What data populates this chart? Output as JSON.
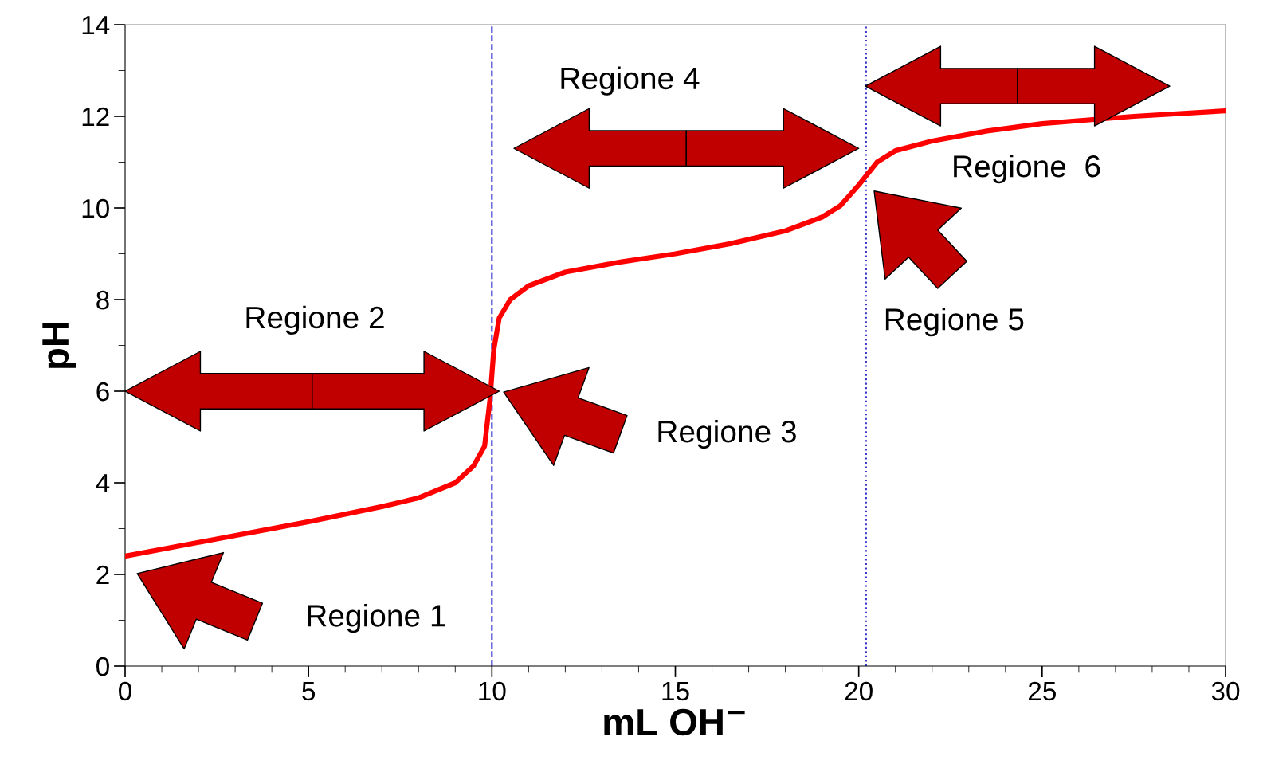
{
  "chart_data": {
    "type": "line",
    "xlabel": "mL OH$^{−}$",
    "ylabel": "pH",
    "xlim": [
      0,
      30
    ],
    "ylim": [
      0,
      14
    ],
    "xticks": [
      0,
      5,
      10,
      15,
      20,
      25,
      30
    ],
    "yticks": [
      0,
      2,
      4,
      6,
      8,
      10,
      12,
      14
    ],
    "grid": false,
    "marker": "none",
    "line_style": "solid",
    "series": [
      {
        "color": "#ff0000",
        "x": [
          0,
          2,
          5,
          7,
          8,
          9,
          9.5,
          9.8,
          9.95,
          10.05,
          10.2,
          10.5,
          11,
          12,
          13.5,
          15,
          16.5,
          18,
          19,
          19.5,
          20,
          20.5,
          21,
          22,
          23.5,
          25,
          27.5,
          30
        ],
        "values": [
          2.4,
          2.7,
          3.15,
          3.48,
          3.67,
          4.0,
          4.37,
          4.8,
          5.84,
          6.9,
          7.6,
          8.0,
          8.3,
          8.6,
          8.82,
          9.0,
          9.22,
          9.5,
          9.8,
          10.05,
          10.5,
          11.0,
          11.25,
          11.46,
          11.68,
          11.84,
          12.0,
          12.12
        ]
      }
    ],
    "ref_lines": [
      {
        "axis": "x",
        "value": 10,
        "label": null,
        "color": "#3333cc",
        "line_style": "dashed"
      },
      {
        "axis": "x",
        "value": 20.2,
        "label": null,
        "color": "#3333cc",
        "line_style": "dotted"
      }
    ],
    "annotations": [
      "Regione 1",
      "Regione 2",
      "Regione 3",
      "Regione 4",
      "Regione 5",
      "Regione  6"
    ]
  }
}
